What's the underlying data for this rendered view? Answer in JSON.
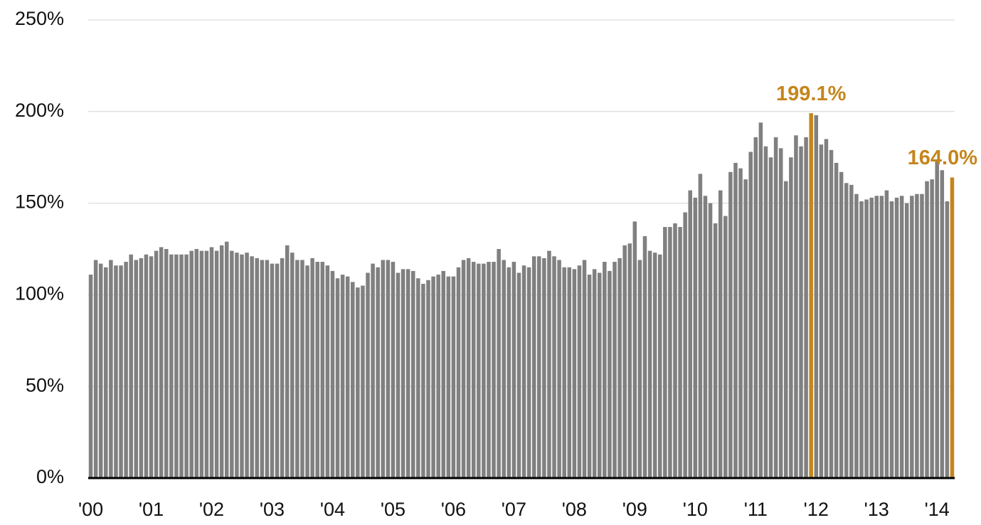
{
  "chart_data": {
    "type": "bar",
    "categories": [
      "'00",
      null,
      null,
      null,
      null,
      null,
      null,
      null,
      null,
      null,
      null,
      null,
      "'01",
      null,
      null,
      null,
      null,
      null,
      null,
      null,
      null,
      null,
      null,
      null,
      "'02",
      null,
      null,
      null,
      null,
      null,
      null,
      null,
      null,
      null,
      null,
      null,
      "'03",
      null,
      null,
      null,
      null,
      null,
      null,
      null,
      null,
      null,
      null,
      null,
      "'04",
      null,
      null,
      null,
      null,
      null,
      null,
      null,
      null,
      null,
      null,
      null,
      "'05",
      null,
      null,
      null,
      null,
      null,
      null,
      null,
      null,
      null,
      null,
      null,
      "'06",
      null,
      null,
      null,
      null,
      null,
      null,
      null,
      null,
      null,
      null,
      null,
      "'07",
      null,
      null,
      null,
      null,
      null,
      null,
      null,
      null,
      null,
      null,
      null,
      "'08",
      null,
      null,
      null,
      null,
      null,
      null,
      null,
      null,
      null,
      null,
      null,
      "'09",
      null,
      null,
      null,
      null,
      null,
      null,
      null,
      null,
      null,
      null,
      null,
      "'10",
      null,
      null,
      null,
      null,
      null,
      null,
      null,
      null,
      null,
      null,
      null,
      "'11",
      null,
      null,
      null,
      null,
      null,
      null,
      null,
      null,
      null,
      null,
      null,
      "'12",
      null,
      null,
      null,
      null,
      null,
      null,
      null,
      null,
      null,
      null,
      null,
      "'13",
      null,
      null,
      null,
      null,
      null,
      null,
      null,
      null,
      null,
      null,
      null,
      "'14",
      null,
      null,
      null
    ],
    "values": [
      111,
      119,
      117,
      115,
      119,
      116,
      116,
      118,
      122,
      119,
      120,
      122,
      121,
      124,
      126,
      125,
      122,
      122,
      122,
      122,
      124,
      125,
      124,
      124,
      126,
      124,
      127,
      129,
      124,
      123,
      122,
      123,
      121,
      120,
      119,
      119,
      117,
      117,
      120,
      127,
      123,
      119,
      119,
      116,
      120,
      118,
      118,
      116,
      113,
      109,
      111,
      110,
      107,
      104,
      105,
      112,
      117,
      115,
      119,
      119,
      118,
      112,
      114,
      114,
      113,
      109,
      106,
      108,
      110,
      111,
      113,
      110,
      110,
      115,
      119,
      120,
      118,
      117,
      117,
      118,
      118,
      125,
      119,
      115,
      118,
      112,
      116,
      115,
      121,
      121,
      120,
      124,
      121,
      119,
      115,
      115,
      114,
      116,
      119,
      111,
      114,
      112,
      118,
      113,
      118,
      120,
      127,
      128,
      140,
      119,
      132,
      124,
      123,
      122,
      137,
      137,
      139,
      137,
      145,
      157,
      153,
      166,
      154,
      150,
      139,
      157,
      143,
      167,
      172,
      169,
      163,
      178,
      186,
      194,
      181,
      175,
      186,
      180,
      162,
      175,
      187,
      181,
      186,
      199.1,
      198,
      182,
      185,
      179,
      172,
      167,
      161,
      160,
      155,
      151,
      152,
      153,
      154,
      154,
      157,
      151,
      153,
      154,
      150,
      154,
      155,
      155,
      162,
      163,
      173,
      168,
      151,
      164
    ],
    "value_labels": [
      null,
      null,
      null,
      null,
      null,
      null,
      null,
      null,
      null,
      null,
      null,
      null,
      null,
      null,
      null,
      null,
      null,
      null,
      null,
      null,
      null,
      null,
      null,
      null,
      null,
      null,
      null,
      null,
      null,
      null,
      null,
      null,
      null,
      null,
      null,
      null,
      null,
      null,
      null,
      null,
      null,
      null,
      null,
      null,
      null,
      null,
      null,
      null,
      null,
      null,
      null,
      null,
      null,
      null,
      null,
      null,
      null,
      null,
      null,
      null,
      null,
      null,
      null,
      null,
      null,
      null,
      null,
      null,
      null,
      null,
      null,
      null,
      null,
      null,
      null,
      null,
      null,
      null,
      null,
      null,
      null,
      null,
      null,
      null,
      null,
      null,
      null,
      null,
      null,
      null,
      null,
      null,
      null,
      null,
      null,
      null,
      null,
      null,
      null,
      null,
      null,
      null,
      null,
      null,
      null,
      null,
      null,
      null,
      null,
      null,
      null,
      null,
      null,
      null,
      null,
      null,
      null,
      null,
      null,
      null,
      null,
      null,
      null,
      null,
      null,
      null,
      null,
      null,
      null,
      null,
      null,
      null,
      null,
      null,
      null,
      null,
      null,
      null,
      null,
      null,
      null,
      null,
      null,
      "199.1%",
      null,
      null,
      null,
      null,
      null,
      null,
      null,
      null,
      null,
      null,
      null,
      null,
      null,
      null,
      null,
      null,
      null,
      null,
      null,
      null,
      null,
      null,
      null,
      null,
      null,
      null,
      null,
      "164.0%"
    ],
    "color": "#808080",
    "highlight_color": "#c5851c",
    "ylim": [
      0,
      250
    ],
    "yticks": [
      {
        "value": 0,
        "label": "0%"
      },
      {
        "value": 50,
        "label": "50%"
      },
      {
        "value": 100,
        "label": "100%"
      },
      {
        "value": 150,
        "label": "150%"
      },
      {
        "value": 200,
        "label": "200%"
      },
      {
        "value": 250,
        "label": "250%"
      }
    ],
    "grid": true
  }
}
